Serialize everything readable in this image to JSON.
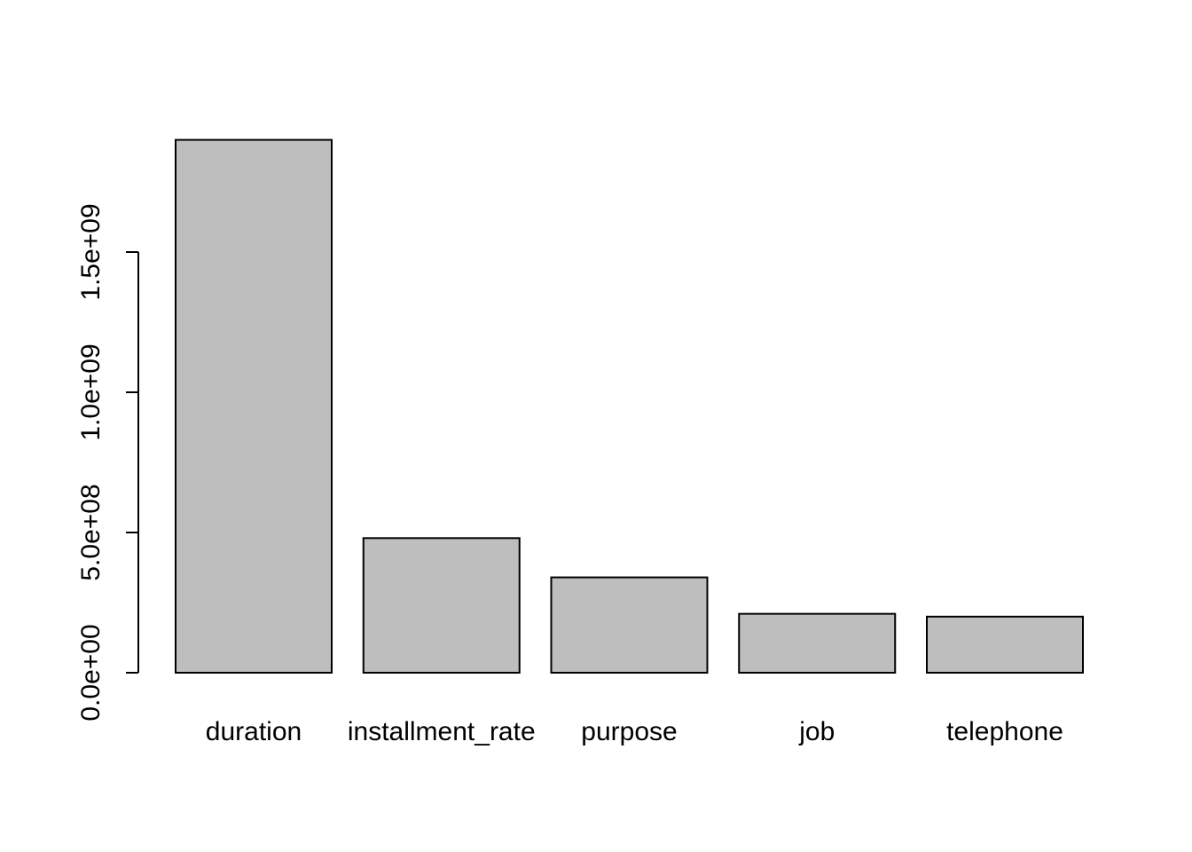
{
  "chart_data": {
    "type": "bar",
    "title": "",
    "xlabel": "",
    "ylabel": "",
    "categories": [
      "duration",
      "installment_rate",
      "purpose",
      "job",
      "telephone"
    ],
    "values": [
      1900000000,
      480000000,
      340000000,
      210000000,
      200000000
    ],
    "ylim": [
      0,
      1900000000
    ],
    "yticks": [
      0,
      500000000,
      1000000000,
      1500000000
    ],
    "ytick_labels": [
      "0.0e+00",
      "5.0e+08",
      "1.0e+09",
      "1.5e+09"
    ],
    "grid": false,
    "legend": "none",
    "bar_fill": "#bebebe",
    "bar_stroke": "#000000"
  }
}
